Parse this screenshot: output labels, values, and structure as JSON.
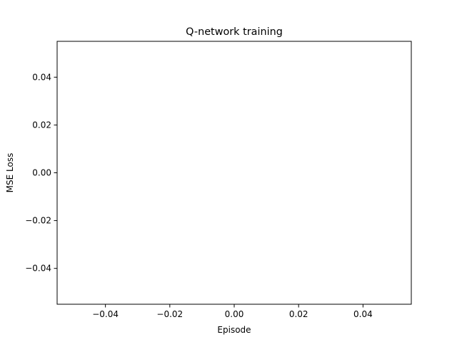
{
  "chart_data": {
    "type": "line",
    "title": "Q-network training",
    "xlabel": "Episode",
    "ylabel": "MSE Loss",
    "xlim": [
      -0.055,
      0.055
    ],
    "ylim": [
      -0.055,
      0.055
    ],
    "xticks": [
      -0.04,
      -0.02,
      0.0,
      0.02,
      0.04
    ],
    "xtick_labels": [
      "−0.04",
      "−0.02",
      "0.00",
      "0.02",
      "0.04"
    ],
    "yticks": [
      -0.04,
      -0.02,
      0.0,
      0.02,
      0.04
    ],
    "ytick_labels": [
      "−0.04",
      "−0.02",
      "0.00",
      "0.02",
      "0.04"
    ],
    "grid": false,
    "series": [
      {
        "x": [],
        "y": []
      }
    ]
  }
}
